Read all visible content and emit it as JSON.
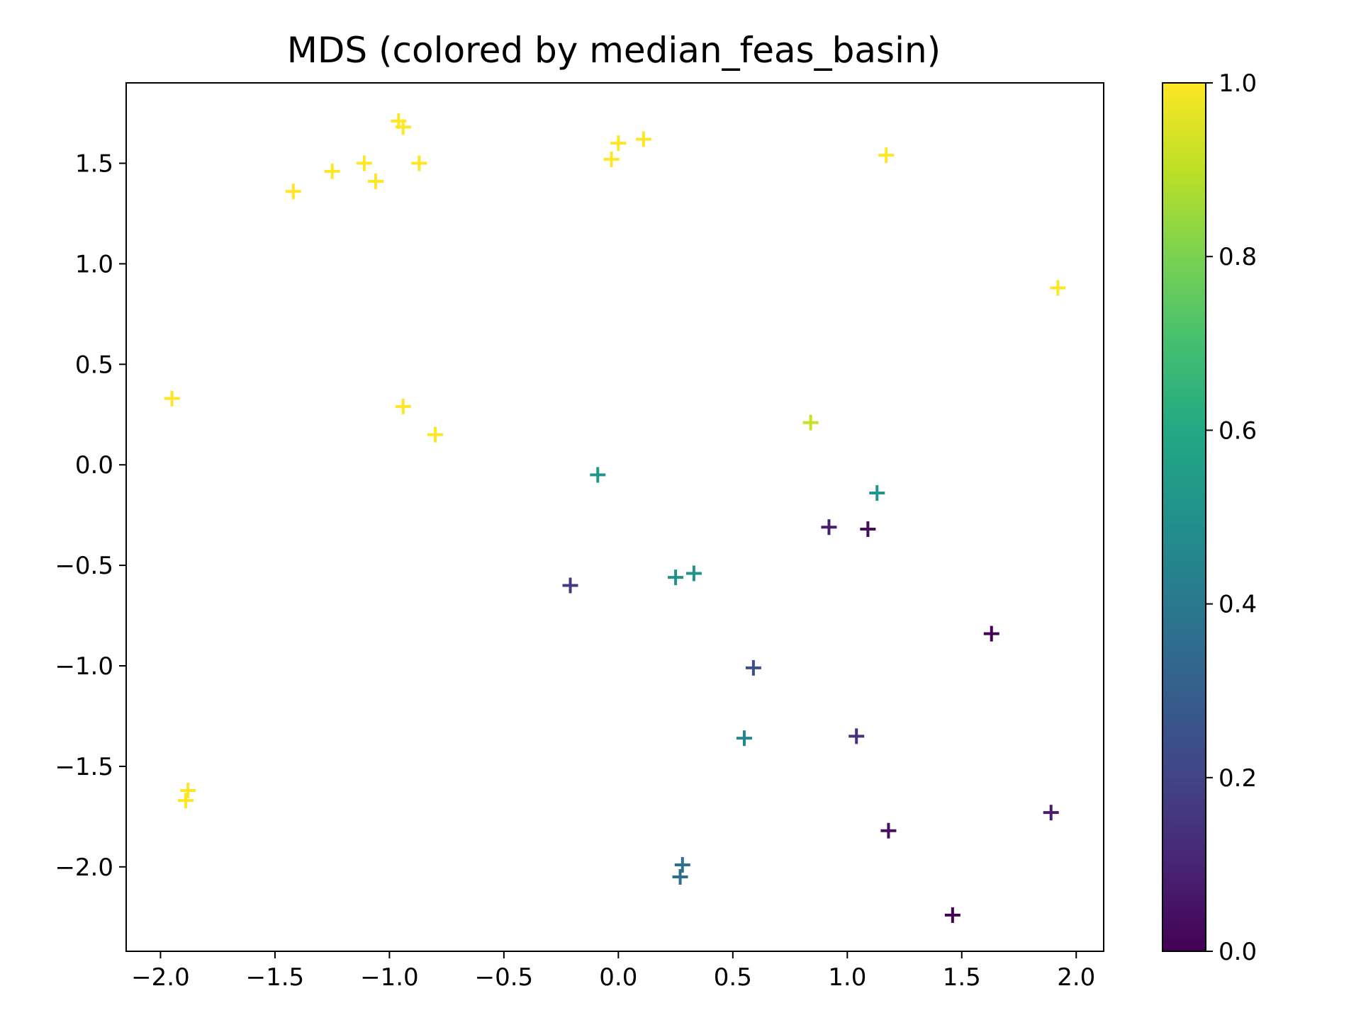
{
  "chart_data": {
    "type": "scatter",
    "title": "MDS (colored by median_feas_basin)",
    "xlabel": "",
    "ylabel": "",
    "xlim": [
      -2.15,
      2.12
    ],
    "ylim": [
      -2.42,
      1.9
    ],
    "xticks": [
      -2.0,
      -1.5,
      -1.0,
      -0.5,
      0.0,
      0.5,
      1.0,
      1.5,
      2.0
    ],
    "xtick_labels": [
      "−2.0",
      "−1.5",
      "−1.0",
      "−0.5",
      "0.0",
      "0.5",
      "1.0",
      "1.5",
      "2.0"
    ],
    "yticks": [
      -2.0,
      -1.5,
      -1.0,
      -0.5,
      0.0,
      0.5,
      1.0,
      1.5
    ],
    "ytick_labels": [
      "−2.0",
      "−1.5",
      "−1.0",
      "−0.5",
      "0.0",
      "0.5",
      "1.0",
      "1.5"
    ],
    "marker": "+",
    "colormap": "viridis",
    "grid": false,
    "legend": "none",
    "colorbar": {
      "range": [
        0.0,
        1.0
      ],
      "ticks": [
        0.0,
        0.2,
        0.4,
        0.6,
        0.8,
        1.0
      ],
      "tick_labels": [
        "0.0",
        "0.2",
        "0.4",
        "0.6",
        "0.8",
        "1.0"
      ]
    },
    "points": [
      {
        "x": -0.96,
        "y": 1.71,
        "c": 1.0
      },
      {
        "x": -0.94,
        "y": 1.68,
        "c": 1.0
      },
      {
        "x": -1.25,
        "y": 1.46,
        "c": 1.0
      },
      {
        "x": -1.11,
        "y": 1.5,
        "c": 1.0
      },
      {
        "x": -1.06,
        "y": 1.41,
        "c": 1.0
      },
      {
        "x": -0.87,
        "y": 1.5,
        "c": 1.0
      },
      {
        "x": -1.42,
        "y": 1.36,
        "c": 1.0
      },
      {
        "x": 0.0,
        "y": 1.6,
        "c": 1.0
      },
      {
        "x": -0.03,
        "y": 1.52,
        "c": 1.0
      },
      {
        "x": 0.11,
        "y": 1.62,
        "c": 1.0
      },
      {
        "x": 1.17,
        "y": 1.54,
        "c": 1.0
      },
      {
        "x": 1.92,
        "y": 0.88,
        "c": 1.0
      },
      {
        "x": -1.95,
        "y": 0.33,
        "c": 1.0
      },
      {
        "x": -0.94,
        "y": 0.29,
        "c": 1.0
      },
      {
        "x": -0.8,
        "y": 0.15,
        "c": 1.0
      },
      {
        "x": 0.84,
        "y": 0.21,
        "c": 0.92
      },
      {
        "x": -0.09,
        "y": -0.05,
        "c": 0.52
      },
      {
        "x": 1.13,
        "y": -0.14,
        "c": 0.52
      },
      {
        "x": 0.92,
        "y": -0.31,
        "c": 0.08
      },
      {
        "x": 1.09,
        "y": -0.32,
        "c": 0.03
      },
      {
        "x": -0.21,
        "y": -0.6,
        "c": 0.17
      },
      {
        "x": 0.25,
        "y": -0.56,
        "c": 0.5
      },
      {
        "x": 0.33,
        "y": -0.54,
        "c": 0.5
      },
      {
        "x": 1.63,
        "y": -0.84,
        "c": 0.0
      },
      {
        "x": 0.59,
        "y": -1.01,
        "c": 0.24
      },
      {
        "x": 0.55,
        "y": -1.36,
        "c": 0.46
      },
      {
        "x": 1.04,
        "y": -1.35,
        "c": 0.14
      },
      {
        "x": -1.88,
        "y": -1.62,
        "c": 1.0
      },
      {
        "x": -1.89,
        "y": -1.67,
        "c": 1.0
      },
      {
        "x": 1.18,
        "y": -1.82,
        "c": 0.04
      },
      {
        "x": 1.89,
        "y": -1.73,
        "c": 0.08
      },
      {
        "x": 0.28,
        "y": -1.99,
        "c": 0.36
      },
      {
        "x": 0.27,
        "y": -2.05,
        "c": 0.36
      },
      {
        "x": 1.46,
        "y": -2.24,
        "c": 0.0
      }
    ]
  }
}
